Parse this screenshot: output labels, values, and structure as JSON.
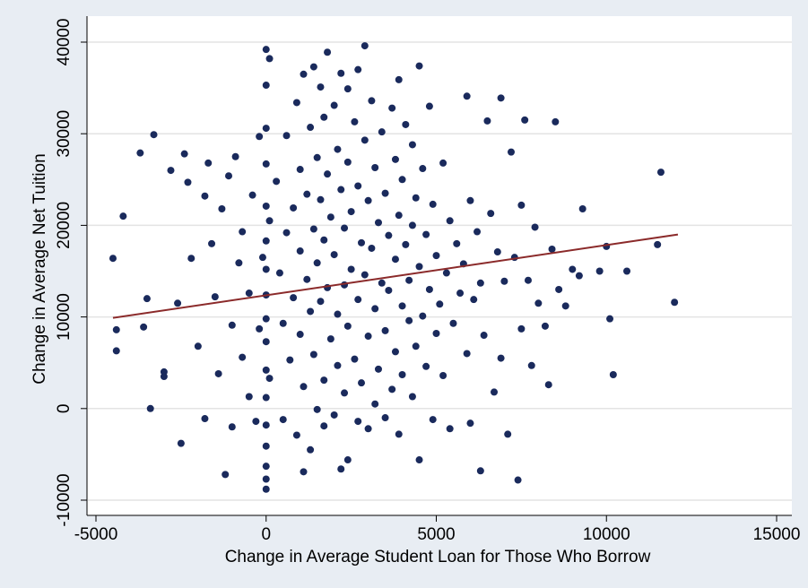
{
  "chart_data": {
    "type": "scatter",
    "xlabel": "Change in Average Student Loan for Those Who Borrow",
    "ylabel": "Change in Average Net Tuition",
    "xlim": [
      -5000,
      15000
    ],
    "xticks": [
      -5000,
      0,
      5000,
      10000,
      15000
    ],
    "ylim": [
      -10000,
      40000
    ],
    "yticks": [
      -10000,
      0,
      10000,
      20000,
      30000,
      40000
    ],
    "grid": true,
    "series": [
      {
        "color": "#1a2a5c",
        "x": [
          -4500,
          -4400,
          -4400,
          -4200,
          -3700,
          -3500,
          -3600,
          -3400,
          -3300,
          -3000,
          -3000,
          -2800,
          -2600,
          -2500,
          -2400,
          -2300,
          -2200,
          -2000,
          -1800,
          -1800,
          -1700,
          -1600,
          -1500,
          -1400,
          -1300,
          -1200,
          -1100,
          -1000,
          -1000,
          -900,
          -800,
          -700,
          -700,
          -500,
          -500,
          -400,
          -300,
          -200,
          -200,
          -100,
          0,
          0,
          0,
          0,
          0,
          0,
          0,
          0,
          0,
          0,
          0,
          0,
          0,
          0,
          0,
          0,
          0,
          100,
          100,
          100,
          300,
          400,
          500,
          500,
          600,
          600,
          700,
          800,
          800,
          900,
          900,
          1000,
          1000,
          1000,
          1100,
          1100,
          1100,
          1200,
          1200,
          1300,
          1300,
          1300,
          1400,
          1400,
          1400,
          1500,
          1500,
          1500,
          1600,
          1600,
          1600,
          1700,
          1700,
          1700,
          1700,
          1800,
          1800,
          1800,
          1900,
          1900,
          2000,
          2000,
          2000,
          2100,
          2100,
          2100,
          2200,
          2200,
          2200,
          2300,
          2300,
          2300,
          2400,
          2400,
          2400,
          2400,
          2500,
          2500,
          2600,
          2600,
          2700,
          2700,
          2700,
          2700,
          2800,
          2800,
          2900,
          2900,
          2900,
          3000,
          3000,
          3000,
          3100,
          3100,
          3200,
          3200,
          3200,
          3300,
          3300,
          3400,
          3400,
          3500,
          3500,
          3500,
          3600,
          3600,
          3700,
          3700,
          3800,
          3800,
          3800,
          3900,
          3900,
          3900,
          4000,
          4000,
          4000,
          4100,
          4100,
          4200,
          4200,
          4300,
          4300,
          4300,
          4400,
          4400,
          4500,
          4500,
          4500,
          4600,
          4600,
          4700,
          4700,
          4800,
          4800,
          4900,
          4900,
          5000,
          5000,
          5100,
          5200,
          5200,
          5300,
          5400,
          5400,
          5500,
          5600,
          5700,
          5800,
          5900,
          5900,
          6000,
          6000,
          6100,
          6200,
          6300,
          6300,
          6400,
          6500,
          6600,
          6700,
          6800,
          6900,
          6900,
          7000,
          7100,
          7200,
          7300,
          7400,
          7500,
          7500,
          7600,
          7700,
          7800,
          7900,
          8000,
          8200,
          8300,
          8400,
          8500,
          8600,
          8800,
          9000,
          9200,
          9300,
          9800,
          10000,
          10100,
          10200,
          10600,
          11500,
          11600,
          12000
        ],
        "values": [
          16400,
          8600,
          6300,
          21000,
          27900,
          12000,
          8900,
          0,
          29900,
          4000,
          3500,
          26000,
          11500,
          -3800,
          27800,
          24700,
          16400,
          6800,
          23200,
          -1100,
          26800,
          18000,
          12200,
          3800,
          21800,
          -7200,
          25400,
          9100,
          -2000,
          27500,
          15900,
          5600,
          19300,
          1300,
          12600,
          23300,
          -1400,
          29700,
          8700,
          16500,
          39200,
          35300,
          30600,
          26700,
          22100,
          18300,
          15200,
          12400,
          9800,
          7300,
          4200,
          1200,
          -1800,
          -4100,
          -6300,
          -7700,
          -8800,
          38200,
          20500,
          3300,
          24800,
          14800,
          9300,
          -1200,
          29800,
          19200,
          5300,
          21900,
          12100,
          33400,
          -2900,
          26100,
          17200,
          8100,
          36500,
          2400,
          -6900,
          23400,
          14100,
          30700,
          10600,
          -4500,
          37300,
          19600,
          5900,
          27400,
          15900,
          -100,
          35100,
          22800,
          11700,
          31800,
          18400,
          3100,
          -1900,
          38900,
          25600,
          13200,
          20900,
          7600,
          33100,
          16800,
          -700,
          28300,
          10300,
          4700,
          36600,
          23900,
          -6600,
          19700,
          13500,
          1700,
          34900,
          26900,
          9000,
          -5600,
          21500,
          15200,
          31300,
          5400,
          37000,
          24300,
          11900,
          -1400,
          18100,
          2800,
          39600,
          29300,
          14600,
          22700,
          7900,
          -2200,
          33600,
          17500,
          26300,
          10900,
          500,
          20300,
          4300,
          30200,
          13700,
          23500,
          8500,
          -1000,
          18900,
          12900,
          32800,
          2100,
          27200,
          16300,
          6200,
          35900,
          21100,
          -2800,
          25000,
          11200,
          3700,
          31000,
          17900,
          14000,
          9600,
          28800,
          20000,
          1300,
          23000,
          6800,
          37400,
          15500,
          -5600,
          26200,
          10100,
          19000,
          4600,
          33000,
          13000,
          22300,
          -1200,
          16700,
          8200,
          11400,
          26800,
          3600,
          14800,
          20500,
          -2200,
          9300,
          18000,
          12600,
          15800,
          34100,
          6000,
          22700,
          -1600,
          11900,
          19300,
          13700,
          -6800,
          8000,
          31400,
          21300,
          1800,
          17100,
          33900,
          5500,
          13900,
          -2800,
          28000,
          16500,
          -7800,
          22200,
          8700,
          31500,
          14000,
          4700,
          19800,
          11500,
          9000,
          2600,
          17400,
          31300,
          13000,
          11200,
          15200,
          14500,
          21800,
          15000,
          17700,
          9800,
          3700,
          15000,
          17900,
          25800,
          11600
        ]
      }
    ],
    "fit": {
      "color": "#8b2a2a",
      "x": [
        -4500,
        12100
      ],
      "values": [
        9900,
        19000
      ]
    }
  }
}
